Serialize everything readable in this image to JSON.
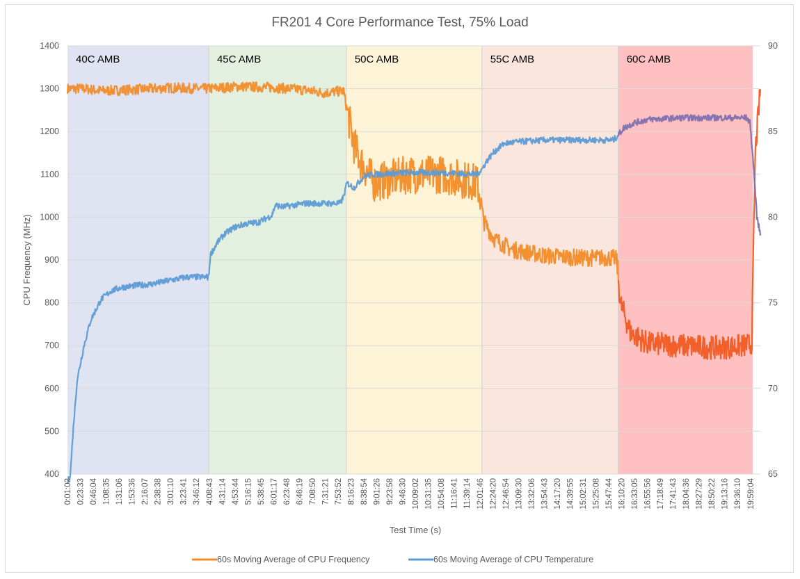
{
  "chart_data": {
    "type": "line",
    "title": "FR201 4 Core Performance Test, 75% Load",
    "xlabel": "Test Time (s)",
    "ylabel": "CPU Frequency (MHz)",
    "y2label": "",
    "ylim": [
      400,
      1400
    ],
    "y_ticks": [
      400,
      500,
      600,
      700,
      800,
      900,
      1000,
      1100,
      1200,
      1300,
      1400
    ],
    "y2lim": [
      65,
      90
    ],
    "y2_ticks": [
      65,
      70,
      75,
      80,
      85,
      90
    ],
    "x_ticks": [
      "0:01:02",
      "0:23:33",
      "0:46:04",
      "1:08:35",
      "1:31:06",
      "1:53:36",
      "2:16:07",
      "2:38:38",
      "3:01:10",
      "3:23:41",
      "3:46:12",
      "4:08:43",
      "4:31:14",
      "4:53:44",
      "5:16:15",
      "5:38:45",
      "6:01:17",
      "6:23:48",
      "6:46:19",
      "7:08:50",
      "7:31:21",
      "7:53:52",
      "8:16:23",
      "8:38:54",
      "9:01:26",
      "9:23:58",
      "9:46:30",
      "10:09:02",
      "10:31:35",
      "10:54:08",
      "11:16:41",
      "11:39:14",
      "12:01:46",
      "12:24:20",
      "12:46:54",
      "13:09:30",
      "13:32:06",
      "13:54:43",
      "14:17:20",
      "14:39:55",
      "15:02:31",
      "15:25:08",
      "15:47:44",
      "16:10:20",
      "16:33:05",
      "16:55:56",
      "17:18:49",
      "17:41:43",
      "18:04:36",
      "18:27:29",
      "18:50:22",
      "19:13:16",
      "19:36:10",
      "19:59:04"
    ],
    "x_range_hours": [
      0.017,
      20.3
    ],
    "grid": true,
    "legend_position": "bottom",
    "regions": [
      {
        "label": "40C AMB",
        "start_hours": 0.017,
        "end_hours": 4.15,
        "color": "#dfe3f2"
      },
      {
        "label": "45C AMB",
        "start_hours": 4.15,
        "end_hours": 8.18,
        "color": "#e4f0df"
      },
      {
        "label": "50C AMB",
        "start_hours": 8.18,
        "end_hours": 12.15,
        "color": "#fdf3d7"
      },
      {
        "label": "55C AMB",
        "start_hours": 12.15,
        "end_hours": 16.14,
        "color": "#fbe6dd"
      },
      {
        "label": "60C AMB",
        "start_hours": 16.14,
        "end_hours": 20.08,
        "color": "#fec0c0"
      }
    ],
    "series": [
      {
        "name": "60s Moving Average of CPU Frequency",
        "axis": "left",
        "color": "#f28c28",
        "color_late": "#f25a20",
        "x_hours": [
          0.017,
          0.5,
          1,
          2,
          3,
          4,
          4.15,
          5,
          6,
          7,
          7.5,
          8.1,
          8.2,
          8.4,
          8.6,
          9,
          10,
          11,
          12,
          12.1,
          12.2,
          12.5,
          13,
          14,
          15,
          16,
          16.1,
          16.2,
          16.5,
          17,
          18,
          19,
          19.9,
          20.05,
          20.15,
          20.3
        ],
        "values": [
          1300,
          1300,
          1295,
          1298,
          1302,
          1300,
          1300,
          1305,
          1303,
          1297,
          1290,
          1295,
          1250,
          1170,
          1130,
          1080,
          1100,
          1100,
          1080,
          1050,
          990,
          950,
          925,
          910,
          905,
          905,
          900,
          800,
          730,
          705,
          700,
          695,
          700,
          705,
          1150,
          1300
        ]
      },
      {
        "name": "60s Moving Average of CPU Temperature",
        "axis": "right",
        "color": "#5b9bd5",
        "color_late": "#7f6fb0",
        "x_hours": [
          0.017,
          0.1,
          0.2,
          0.3,
          0.5,
          0.7,
          1,
          1.3,
          1.6,
          2,
          2.5,
          3,
          3.5,
          4,
          4.15,
          4.2,
          4.4,
          4.6,
          4.9,
          5.2,
          5.6,
          6,
          6.1,
          6.3,
          7,
          8,
          8.1,
          8.2,
          8.4,
          8.7,
          9,
          10,
          11,
          12,
          12.15,
          12.3,
          12.5,
          12.8,
          13.2,
          14,
          15,
          16,
          16.1,
          16.3,
          16.6,
          17,
          18,
          19,
          19.9,
          20.0,
          20.1,
          20.2,
          20.3
        ],
        "values": [
          64.5,
          65,
          68,
          70.5,
          72.5,
          74,
          75.2,
          75.7,
          75.9,
          76,
          76.1,
          76.3,
          76.5,
          76.5,
          76.5,
          77.8,
          78.5,
          79,
          79.4,
          79.6,
          79.7,
          80.1,
          80.7,
          80.6,
          80.8,
          80.8,
          81.2,
          82,
          81.7,
          82.4,
          82.5,
          82.6,
          82.6,
          82.5,
          82.8,
          83.3,
          83.8,
          84.3,
          84.4,
          84.5,
          84.5,
          84.5,
          84.7,
          85.2,
          85.5,
          85.7,
          85.8,
          85.8,
          85.8,
          85.5,
          83,
          80,
          79
        ]
      }
    ]
  }
}
